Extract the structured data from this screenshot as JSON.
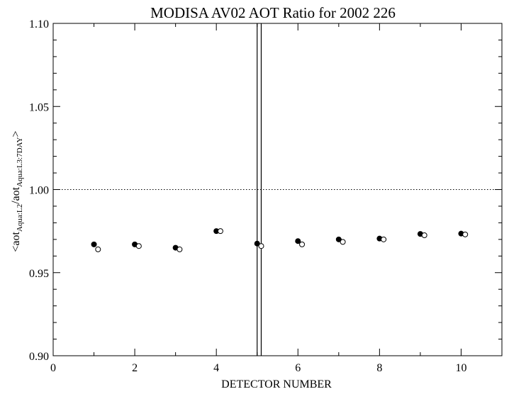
{
  "chart_data": {
    "type": "scatter",
    "title": "MODISA AV02 AOT Ratio for 2002 226",
    "xlabel": "DETECTOR NUMBER",
    "ylabel_parts": [
      "<aot",
      "Aqua:L2",
      "/aot",
      "Aqua:L3:7DAY",
      ">"
    ],
    "xlim": [
      0,
      11
    ],
    "ylim": [
      0.9,
      1.1
    ],
    "x_ticks": [
      0,
      2,
      4,
      6,
      8,
      10
    ],
    "x_tick_labels": [
      "0",
      "2",
      "4",
      "6",
      "8",
      "10"
    ],
    "y_ticks": [
      0.9,
      0.95,
      1.0,
      1.05,
      1.1
    ],
    "y_tick_labels": [
      "0.90",
      "0.95",
      "1.00",
      "1.05",
      "1.10"
    ],
    "reference_line_y": 1.0,
    "vertical_lines_x": [
      5.0,
      5.1
    ],
    "series": [
      {
        "marker": "filled-circle",
        "x": [
          1,
          2,
          3,
          4,
          5,
          6,
          7,
          8,
          9,
          10
        ],
        "y": [
          0.967,
          0.967,
          0.965,
          0.975,
          0.9675,
          0.969,
          0.97,
          0.9705,
          0.9733,
          0.9735
        ]
      },
      {
        "marker": "open-circle",
        "x": [
          1.1,
          2.1,
          3.1,
          4.1,
          5.1,
          6.1,
          7.1,
          8.1,
          9.1,
          10.1
        ],
        "y": [
          0.964,
          0.966,
          0.964,
          0.975,
          0.966,
          0.967,
          0.9685,
          0.97,
          0.9725,
          0.973
        ]
      }
    ]
  }
}
